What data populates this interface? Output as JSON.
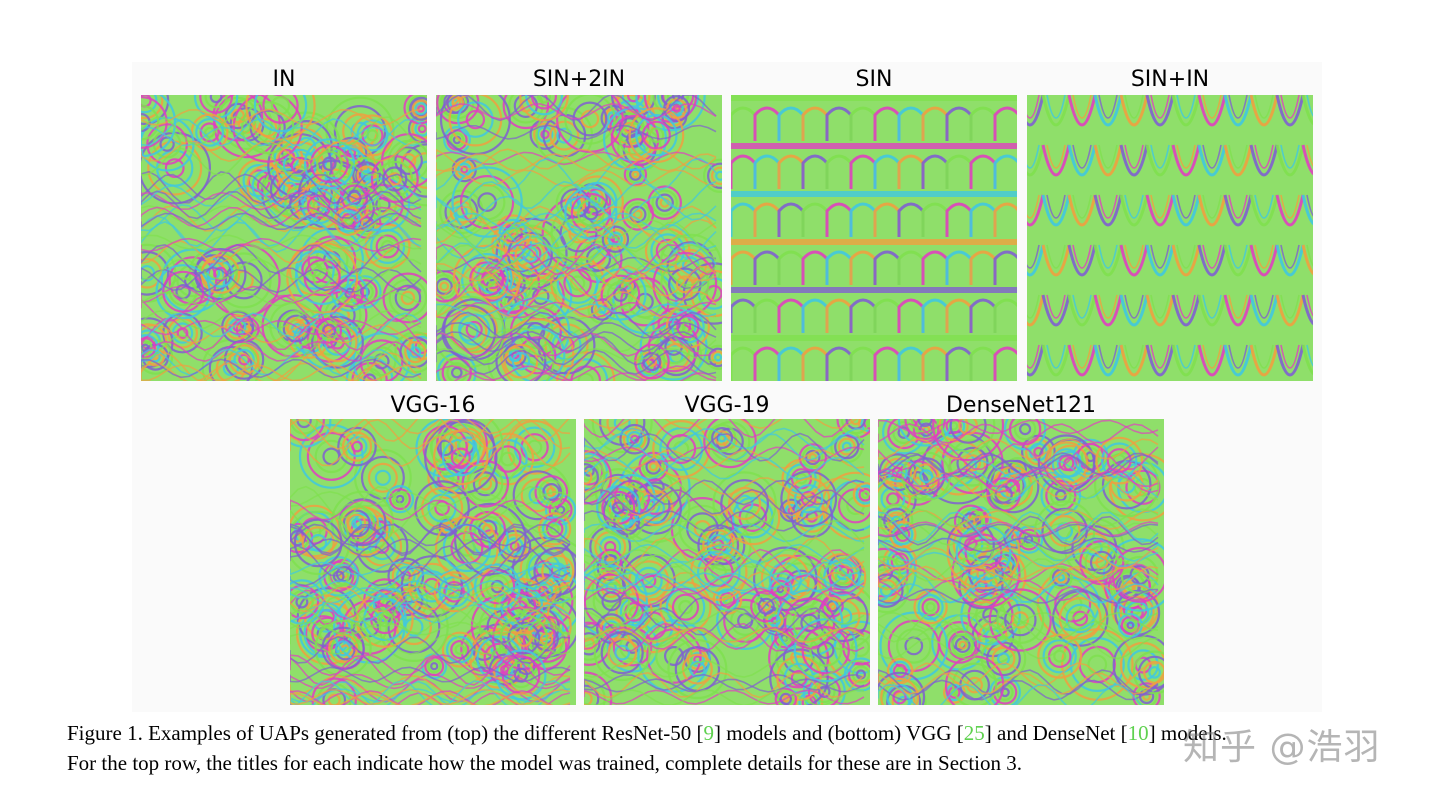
{
  "figure": {
    "panels": [
      {
        "title": "IN",
        "pattern": "swirl"
      },
      {
        "title": "SIN+2IN",
        "pattern": "swirl"
      },
      {
        "title": "SIN",
        "pattern": "arches"
      },
      {
        "title": "SIN+IN",
        "pattern": "drapes"
      },
      {
        "title": "VGG-16",
        "pattern": "swirl"
      },
      {
        "title": "VGG-19",
        "pattern": "swirl"
      },
      {
        "title": "DenseNet121",
        "pattern": "swirl"
      }
    ],
    "colors": {
      "green": "#7fe04f",
      "magenta": "#e040c0",
      "cyan": "#40c8e0",
      "orange": "#f0a040",
      "purple": "#8060d0",
      "ref_green": "#5fd14f"
    }
  },
  "caption": {
    "line1_a": "Figure 1. Examples of UAPs generated from (top) the different ResNet-50 [",
    "ref1": "9",
    "line1_b": "] models and (bottom) VGG [",
    "ref2": "25",
    "line1_c": "] and DenseNet [",
    "ref3": "10",
    "line1_d": "] models.",
    "line2": "For the top row, the titles for each indicate how the model was trained, complete details for these are in Section 3."
  },
  "watermark": "知乎 @浩羽"
}
